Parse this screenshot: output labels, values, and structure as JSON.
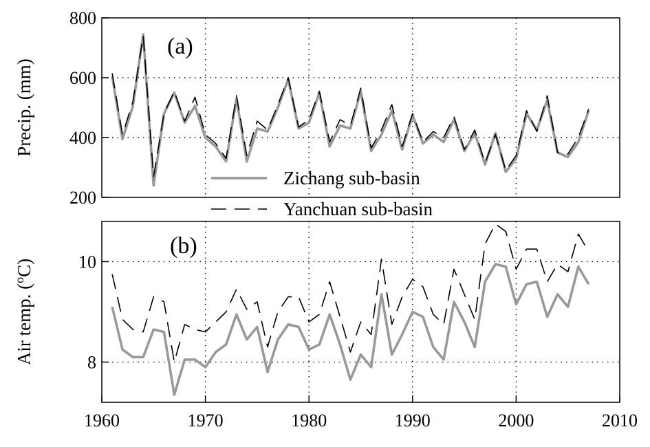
{
  "chart_data": [
    {
      "panel_label": "(a)",
      "type": "line",
      "ylabel": "Precip. (mm)",
      "ylim": [
        200,
        800
      ],
      "xlim": [
        1960,
        2010
      ],
      "yticks": [
        200,
        400,
        600,
        800
      ],
      "grid": true,
      "legend": {
        "placement": "bottom-center",
        "entries": [
          {
            "name": "Zichang sub-basin",
            "color": "#999999",
            "style": "solid"
          },
          {
            "name": "Yanchuan sub-basin",
            "color": "#000000",
            "style": "dashed"
          }
        ]
      },
      "x": [
        1961,
        1962,
        1963,
        1964,
        1965,
        1966,
        1967,
        1968,
        1969,
        1970,
        1971,
        1972,
        1973,
        1974,
        1975,
        1976,
        1977,
        1978,
        1979,
        1980,
        1981,
        1982,
        1983,
        1984,
        1985,
        1986,
        1987,
        1988,
        1989,
        1990,
        1991,
        1992,
        1993,
        1994,
        1995,
        1996,
        1997,
        1998,
        1999,
        2000,
        2001,
        2002,
        2003,
        2004,
        2005,
        2006,
        2007
      ],
      "series": [
        {
          "name": "Zichang sub-basin",
          "color": "#999999",
          "style": "solid",
          "values": [
            605,
            395,
            505,
            745,
            240,
            480,
            550,
            450,
            505,
            400,
            370,
            320,
            530,
            320,
            430,
            420,
            500,
            595,
            430,
            450,
            550,
            370,
            440,
            430,
            555,
            355,
            410,
            490,
            360,
            475,
            380,
            410,
            385,
            460,
            355,
            415,
            310,
            415,
            285,
            330,
            480,
            425,
            525,
            350,
            335,
            385,
            490
          ]
        },
        {
          "name": "Yanchuan sub-basin",
          "color": "#000000",
          "style": "dashed",
          "values": [
            615,
            410,
            520,
            740,
            270,
            480,
            555,
            455,
            535,
            410,
            380,
            330,
            540,
            340,
            455,
            425,
            510,
            600,
            435,
            460,
            555,
            385,
            460,
            440,
            565,
            365,
            425,
            510,
            370,
            480,
            385,
            420,
            400,
            470,
            360,
            425,
            315,
            410,
            290,
            340,
            490,
            420,
            540,
            350,
            345,
            400,
            495
          ]
        }
      ]
    },
    {
      "panel_label": "(b)",
      "type": "line",
      "ylabel": "Air temp. (",
      "ylabel_sup": "o",
      "ylabel_tail": "C)",
      "xlabel": "",
      "ylim": [
        7.2,
        10.8
      ],
      "xlim": [
        1960,
        2010
      ],
      "yticks": [
        8,
        10
      ],
      "xticks": [
        1960,
        1970,
        1980,
        1990,
        2000,
        2010
      ],
      "grid": true,
      "x": [
        1961,
        1962,
        1963,
        1964,
        1965,
        1966,
        1967,
        1968,
        1969,
        1970,
        1971,
        1972,
        1973,
        1974,
        1975,
        1976,
        1977,
        1978,
        1979,
        1980,
        1981,
        1982,
        1983,
        1984,
        1985,
        1986,
        1987,
        1988,
        1989,
        1990,
        1991,
        1992,
        1993,
        1994,
        1995,
        1996,
        1997,
        1998,
        1999,
        2000,
        2001,
        2002,
        2003,
        2004,
        2005,
        2006,
        2007
      ],
      "series": [
        {
          "name": "Zichang sub-basin",
          "color": "#999999",
          "style": "solid",
          "values": [
            9.1,
            8.25,
            8.1,
            8.1,
            8.65,
            8.6,
            7.35,
            8.05,
            8.05,
            7.9,
            8.2,
            8.35,
            8.95,
            8.45,
            8.7,
            7.8,
            8.45,
            8.75,
            8.7,
            8.25,
            8.35,
            8.95,
            8.35,
            7.65,
            8.15,
            7.9,
            9.35,
            8.15,
            8.55,
            9.0,
            8.9,
            8.3,
            8.05,
            9.2,
            8.8,
            8.3,
            9.6,
            9.95,
            9.9,
            9.15,
            9.55,
            9.6,
            8.9,
            9.35,
            9.1,
            9.9,
            9.55
          ]
        },
        {
          "name": "Yanchuan sub-basin",
          "color": "#000000",
          "style": "dashed",
          "values": [
            9.75,
            8.85,
            8.65,
            8.6,
            9.3,
            9.2,
            8.0,
            8.75,
            8.65,
            8.6,
            8.8,
            9.0,
            9.45,
            9.05,
            9.2,
            8.3,
            9.0,
            9.3,
            9.3,
            8.8,
            8.95,
            9.6,
            8.9,
            8.2,
            8.8,
            8.55,
            10.05,
            8.75,
            9.3,
            9.65,
            9.5,
            8.95,
            8.75,
            9.85,
            9.35,
            8.85,
            10.35,
            10.75,
            10.6,
            9.85,
            10.25,
            10.25,
            9.6,
            9.95,
            9.8,
            10.55,
            10.2
          ]
        }
      ]
    }
  ]
}
